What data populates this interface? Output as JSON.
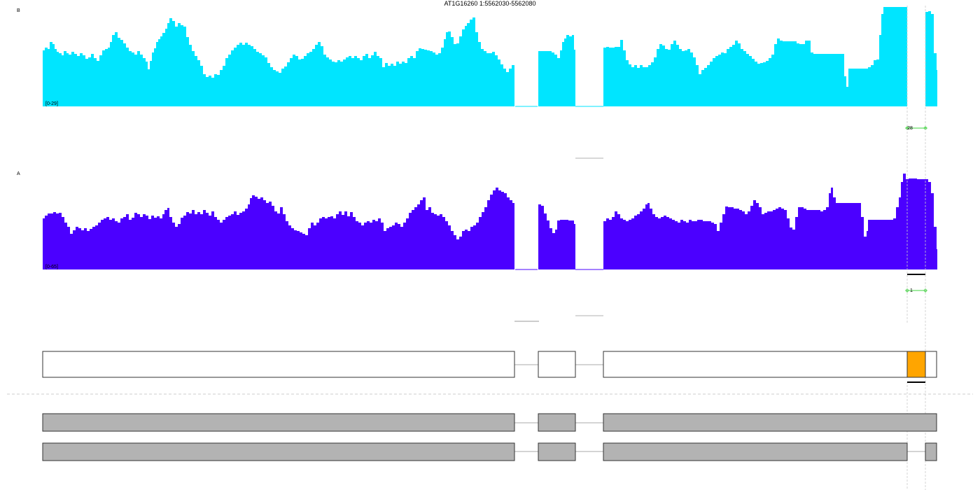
{
  "title": "AT1G16260 1:5562030-5562080",
  "tracks": [
    {
      "label": "B",
      "range": "[0-29]",
      "color": "#00e5ff",
      "junction_count": "28"
    },
    {
      "label": "A",
      "range": "[0-65]",
      "color": "#4b00ff",
      "junction_count": "1"
    }
  ],
  "colors": {
    "highlight": "#ffa500",
    "gene_model_fill": "#b3b3b3",
    "junction": "#66dd66",
    "outline": "#333333"
  }
}
